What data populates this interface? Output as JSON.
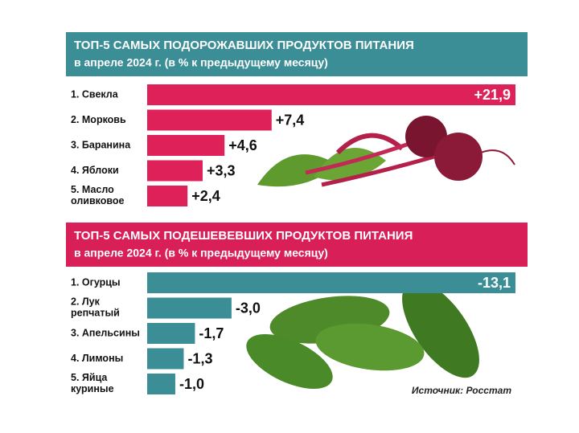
{
  "chart_data": [
    {
      "type": "bar",
      "orientation": "horizontal",
      "title": "ТОП-5 САМЫХ ПОДОРОЖАВШИХ ПРОДУКТОВ ПИТАНИЯ",
      "subtitle": "в апреле 2024 г. (в % к предыдущему месяцу)",
      "banner_color": "#3b8e96",
      "color": "#de2159",
      "categories": [
        "1. Свекла",
        "2. Морковь",
        "3. Баранина",
        "4. Яблоки",
        "5. Масло\nоливковое"
      ],
      "values": [
        21.9,
        7.4,
        4.6,
        3.3,
        2.4
      ],
      "value_labels": [
        "+21,9",
        "+7,4",
        "+4,6",
        "+3,3",
        "+2,4"
      ]
    },
    {
      "type": "bar",
      "orientation": "horizontal",
      "title": "ТОП-5 САМЫХ ПОДЕШЕВЕВШИХ ПРОДУКТОВ ПИТАНИЯ",
      "subtitle": "в апреле 2024 г. (в % к предыдущему месяцу)",
      "banner_color": "#d81f58",
      "color": "#3b8e96",
      "categories": [
        "1. Огурцы",
        "2. Лук\nрепчатый",
        "3. Апельсины",
        "4. Лимоны",
        "5. Яйца\nкуриные"
      ],
      "values": [
        -13.1,
        -3.0,
        -1.7,
        -1.3,
        -1.0
      ],
      "value_labels": [
        "-13,1",
        "-3,0",
        "-1,7",
        "-1,3",
        "-1,0"
      ],
      "source": "Источник: Росстат"
    }
  ]
}
